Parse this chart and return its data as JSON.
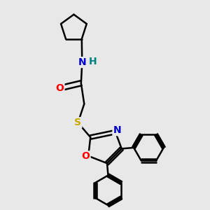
{
  "bg_color": "#e8e8e8",
  "bond_color": "#000000",
  "bond_width": 1.8,
  "atom_colors": {
    "N": "#0000cc",
    "O": "#ff0000",
    "S": "#ccaa00",
    "H_color": "#008080",
    "C": "#000000"
  },
  "font_size": 10,
  "figsize": [
    3.0,
    3.0
  ],
  "dpi": 100
}
